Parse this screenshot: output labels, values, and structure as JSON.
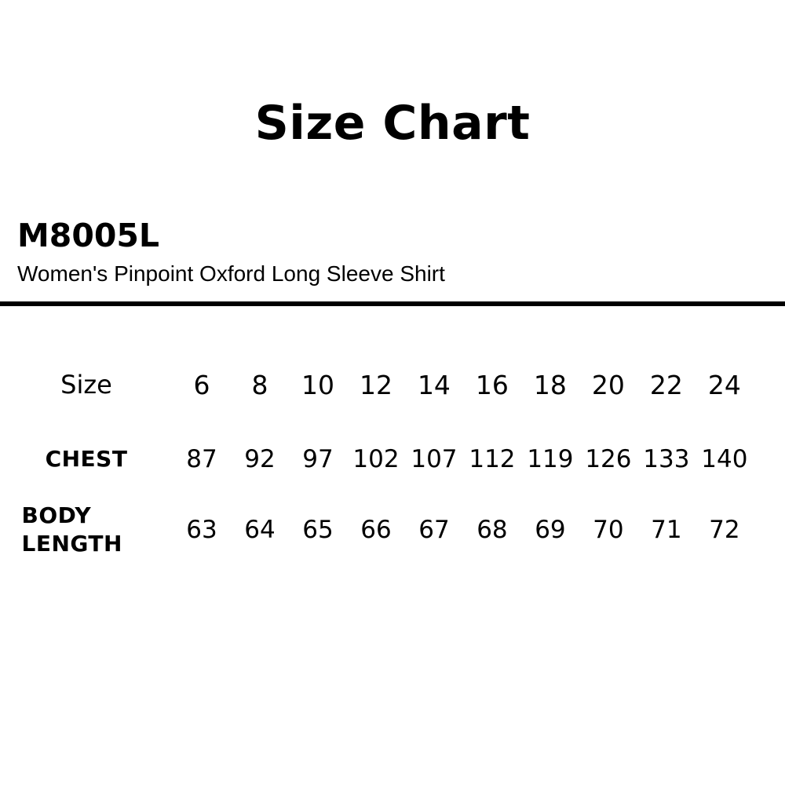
{
  "page": {
    "title": "Size Chart"
  },
  "product": {
    "code": "M8005L",
    "name": "Women's Pinpoint Oxford Long Sleeve Shirt"
  },
  "chart_data": {
    "type": "table",
    "title": "Size Chart",
    "row_header_label": "Size",
    "columns": [
      "6",
      "8",
      "10",
      "12",
      "14",
      "16",
      "18",
      "20",
      "22",
      "24"
    ],
    "rows": [
      {
        "label": "CHEST",
        "values": [
          87,
          92,
          97,
          102,
          107,
          112,
          119,
          126,
          133,
          140
        ]
      },
      {
        "label": "BODY LENGTH",
        "values": [
          63,
          64,
          65,
          66,
          67,
          68,
          69,
          70,
          71,
          72
        ]
      }
    ]
  },
  "colors": {
    "background": "#ffffff",
    "text": "#000000",
    "divider": "#000000"
  }
}
